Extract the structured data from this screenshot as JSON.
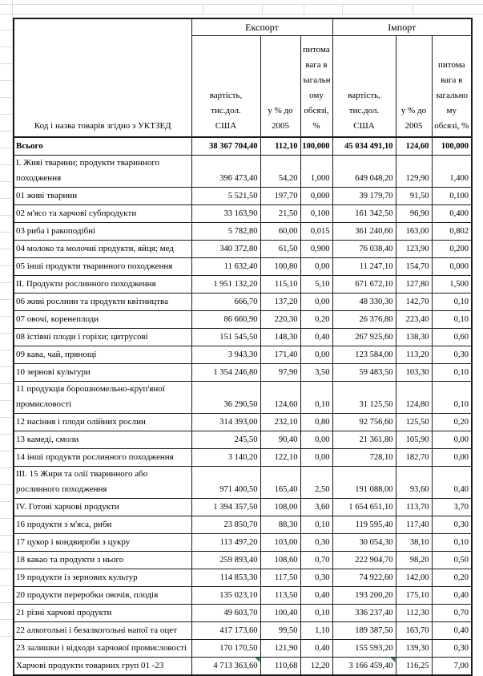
{
  "table": {
    "name_header": "Код і назва товарів згідно з УКТЗЕД",
    "groups": {
      "export": "Експорт",
      "import": "Імпорт"
    },
    "columns": {
      "export_cost": "вартість,\nтис.дол.\nСША",
      "export_pct": "у % до\n2005",
      "export_share": "питома\nвага в\nзагальн\nому\nобсязі,\n%",
      "import_cost": "вартість,\nтис.дол.\nСША",
      "import_pct": "у % до\n2005",
      "import_share": "питома\nвага в\nзагально\nму\nобсязі, %"
    },
    "flag_color": "#2e7d32",
    "rows": [
      {
        "name": "Всього",
        "bold": true,
        "cells": [
          "38 367 704,40",
          "112,10",
          "100,000",
          "45 034 491,10",
          "124,60",
          "100,000"
        ]
      },
      {
        "name": "I. Живі тварини; продукти тваринного походження",
        "wrap": true,
        "cells": [
          "396 473,40",
          "54,20",
          "1,000",
          "649 048,20",
          "129,90",
          "1,400"
        ]
      },
      {
        "name": "01 живі тварини",
        "cells": [
          "5 521,50",
          "197,70",
          "0,000",
          "39 179,70",
          "91,50",
          "0,100"
        ]
      },
      {
        "name": "02 м'ясо та харчові субпродукти",
        "cells": [
          "33 163,90",
          "21,50",
          "0,100",
          "161 342,50",
          "96,90",
          "0,400"
        ]
      },
      {
        "name": "03 риба і ракоподібні",
        "cells": [
          "5 782,80",
          "60,00",
          "0,015",
          "361 240,60",
          "163,00",
          "0,802"
        ]
      },
      {
        "name": "04 молоко та молочні продукти, яйця; мед",
        "cells": [
          "340 372,80",
          "61,50",
          "0,900",
          "76 038,40",
          "123,90",
          "0,200"
        ]
      },
      {
        "name": "05 інші продукти тваринного походження",
        "cells": [
          "11 632,40",
          "100,80",
          "0,00",
          "11 247,10",
          "154,70",
          "0,000"
        ]
      },
      {
        "name": "II. Продукти рослинного походження",
        "cells": [
          "1 951 132,20",
          "115,10",
          "5,10",
          "671 672,10",
          "127,80",
          "1,500"
        ]
      },
      {
        "name": "06 живі рослини та продукти квітництва",
        "cells": [
          "666,70",
          "137,20",
          "0,00",
          "48 330,30",
          "142,70",
          "0,10"
        ]
      },
      {
        "name": "07 овочі, коренеплоди",
        "cells": [
          "86 660,90",
          "220,30",
          "0,20",
          "26 376,80",
          "223,40",
          "0,10"
        ]
      },
      {
        "name": "08 їстівні плоди і горіхи; цитрусові",
        "cells": [
          "151 545,50",
          "148,30",
          "0,40",
          "267 925,60",
          "138,30",
          "0,60"
        ]
      },
      {
        "name": "09 кава, чай, прянощі",
        "cells": [
          "3 943,30",
          "171,40",
          "0,00",
          "123 584,00",
          "113,20",
          "0,30"
        ]
      },
      {
        "name": "10 зернові культури",
        "cells": [
          "1 354 246,80",
          "97,90",
          "3,50",
          "59 483,50",
          "103,30",
          "0,10"
        ]
      },
      {
        "name": "11 продукція борошномельно-круп'яної промисловості",
        "wrap": true,
        "cells": [
          "36 290,50",
          "124,60",
          "0,10",
          "31 125,50",
          "124,80",
          "0,10"
        ]
      },
      {
        "name": "12 насіння і плоди олійних рослин",
        "cells": [
          "314 393,00",
          "232,10",
          "0,80",
          "92 756,60",
          "125,50",
          "0,20"
        ]
      },
      {
        "name": "13 камеді, смоли",
        "cells": [
          "245,50",
          "90,40",
          "0,00",
          "21 361,80",
          "105,90",
          "0,00"
        ]
      },
      {
        "name": "14 інші продукти рослинного походження",
        "cells": [
          "3 140,20",
          "122,10",
          "0,00",
          "728,10",
          "182,70",
          "0,00"
        ]
      },
      {
        "name": "III. 15 Жири та олії тваринного або рослинного походження",
        "wrap": true,
        "cells": [
          "971 400,50",
          "165,40",
          "2,50",
          "191 088,00",
          "93,60",
          "0,40"
        ]
      },
      {
        "name": "IV. Готові харчові продукти",
        "cells": [
          "1 394 357,50",
          "108,00",
          "3,60",
          "1 654 651,10",
          "113,70",
          "3,70"
        ]
      },
      {
        "name": "16 продукти з м'яса, риби",
        "cells": [
          "23 850,70",
          "88,30",
          "0,10",
          "119 595,40",
          "117,40",
          "0,30"
        ]
      },
      {
        "name": "17 цукор і кондвироби з цукру",
        "cells": [
          "113 497,20",
          "103,00",
          "0,30",
          "30 054,30",
          "38,10",
          "0,10"
        ]
      },
      {
        "name": "18 какао та продукти з нього",
        "cells": [
          "259 893,40",
          "108,60",
          "0,70",
          "222 904,70",
          "98,20",
          "0,50"
        ]
      },
      {
        "name": "19 продукти із зернових культур",
        "cells": [
          "114 853,30",
          "117,50",
          "0,30",
          "74 922,60",
          "142,00",
          "0,20"
        ]
      },
      {
        "name": "20 продукти переробки овочів, плодів",
        "cells": [
          "135 023,10",
          "113,50",
          "0,40",
          "193 200,20",
          "175,10",
          "0,40"
        ]
      },
      {
        "name": "21 різні харчові продукти",
        "cells": [
          "49 603,70",
          "100,40",
          "0,10",
          "336 237,40",
          "112,30",
          "0,70"
        ]
      },
      {
        "name": "22 алкогольні і безалкогольні напої та оцет",
        "cells": [
          "417 173,60",
          "99,50",
          "1,10",
          "189 387,50",
          "163,70",
          "0,40"
        ]
      },
      {
        "name": "23 залишки і відходи харчової промисловості",
        "cells": [
          "170 170,50",
          "121,90",
          "0,40",
          "155 593,20",
          "139,30",
          "0,30"
        ]
      },
      {
        "name": "Харчові продукти товарних груп 01 -23",
        "cells": [
          "4 713 363,60",
          "110,68",
          "12,20",
          "3 166 459,40",
          "116,25",
          "7,00"
        ],
        "flags": [
          0,
          3
        ]
      }
    ]
  }
}
